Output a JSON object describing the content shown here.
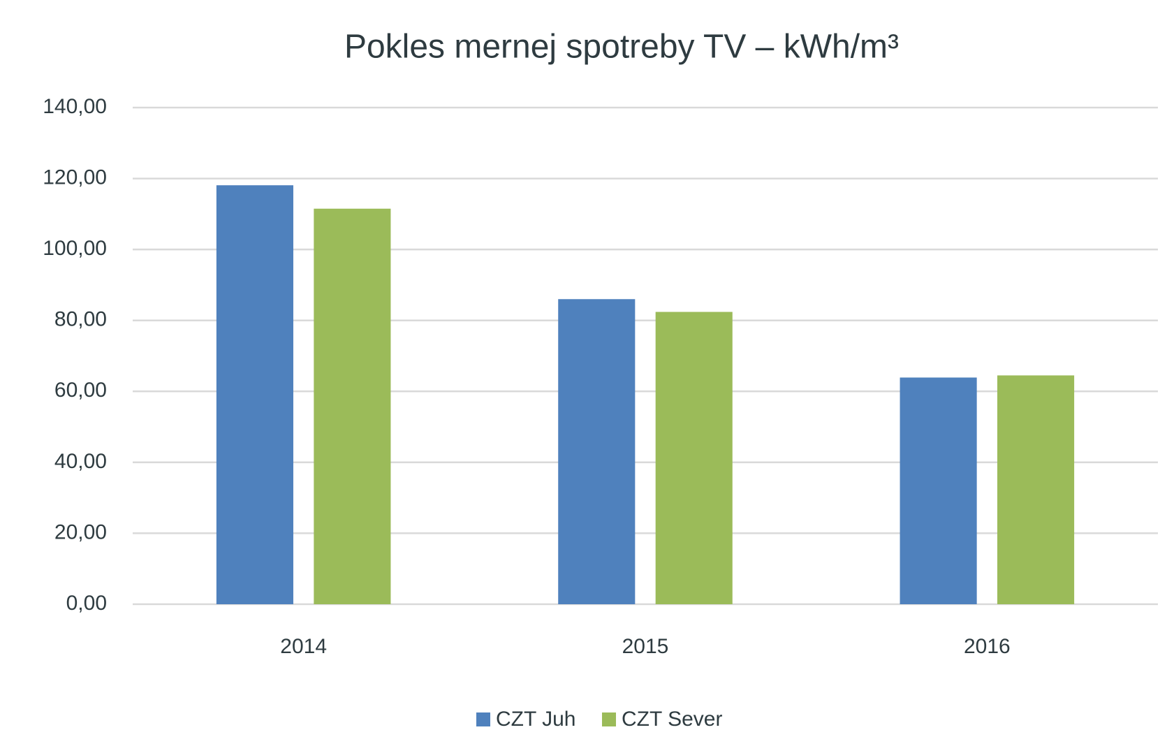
{
  "chart_data": {
    "type": "bar",
    "title": "Pokles mernej spotreby TV – kWh/m³",
    "categories": [
      "2014",
      "2015",
      "2016"
    ],
    "series": [
      {
        "name": "CZT Juh",
        "color": "#4f81bd",
        "values": [
          118.1,
          86.0,
          63.9
        ]
      },
      {
        "name": "CZT Sever",
        "color": "#9bbb59",
        "values": [
          111.5,
          82.4,
          64.5
        ]
      }
    ],
    "ylim": [
      0,
      140
    ],
    "yticks": [
      {
        "value": 0,
        "label": "0,00"
      },
      {
        "value": 20,
        "label": "20,00"
      },
      {
        "value": 40,
        "label": "40,00"
      },
      {
        "value": 60,
        "label": "60,00"
      },
      {
        "value": 80,
        "label": "80,00"
      },
      {
        "value": 100,
        "label": "100,00"
      },
      {
        "value": 120,
        "label": "120,00"
      },
      {
        "value": 140,
        "label": "140,00"
      }
    ],
    "grid": true,
    "legend": "bottom"
  }
}
